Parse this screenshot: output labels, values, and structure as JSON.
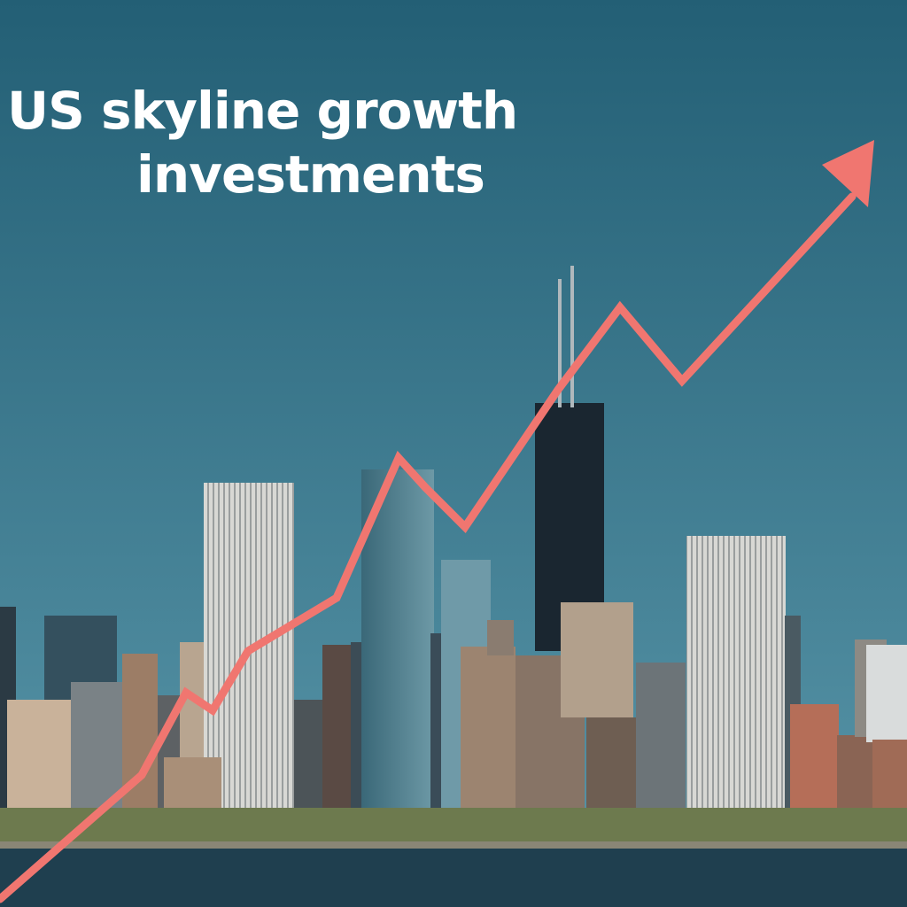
{
  "title": {
    "line1": "US skyline growth",
    "line2": "investments"
  },
  "colors": {
    "sky_top": "#235f75",
    "sky_bottom": "#5a97aa",
    "trend_arrow": "#f07670",
    "water": "#1f3f4f",
    "title_text": "#ffffff"
  },
  "icons": {
    "trend": "upward-trend-arrow-icon"
  }
}
